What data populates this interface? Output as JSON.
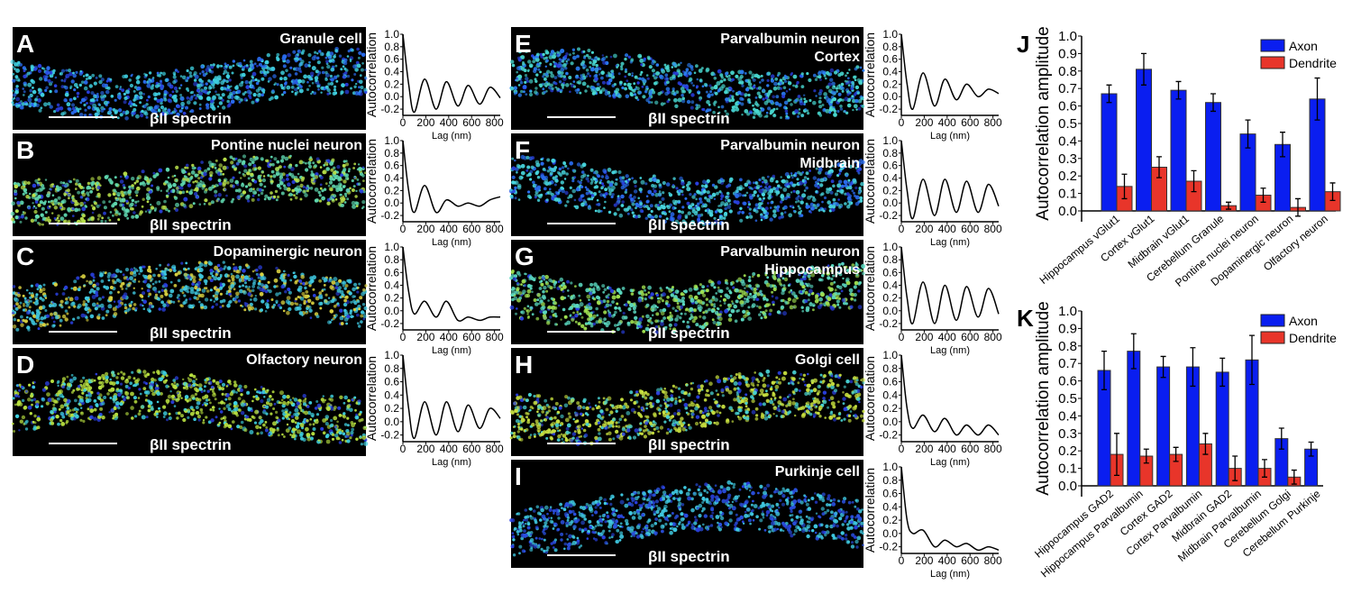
{
  "autocorr_axes": {
    "ylabel": "Autocorrelation",
    "xlabel": "Lag (nm)",
    "yticks": [
      "-0.2",
      "0.0",
      "0.2",
      "0.4",
      "0.6",
      "0.8",
      "1.0"
    ],
    "xticks": [
      "0",
      "200",
      "400",
      "600",
      "800"
    ]
  },
  "stain_label": "βII spectrin",
  "panels": [
    {
      "letter": "A",
      "title": [
        "Granule cell"
      ],
      "colors": [
        "#3fd0e0",
        "#2a6cf0"
      ]
    },
    {
      "letter": "B",
      "title": [
        "Pontine nuclei neuron"
      ],
      "colors": [
        "#5fd8b0",
        "#b8e04a"
      ]
    },
    {
      "letter": "C",
      "title": [
        "Dopaminergic neuron"
      ],
      "colors": [
        "#3fc8e0",
        "#d8d040"
      ]
    },
    {
      "letter": "D",
      "title": [
        "Olfactory neuron"
      ],
      "colors": [
        "#b8e040",
        "#3fd0e0"
      ]
    },
    {
      "letter": "E",
      "title": [
        "Parvalbumin neuron",
        "Cortex"
      ],
      "colors": [
        "#48d8d0",
        "#2a7cf0"
      ]
    },
    {
      "letter": "F",
      "title": [
        "Parvalbumin neuron",
        "Midbrain"
      ],
      "colors": [
        "#48d8e0",
        "#2a6cf0"
      ]
    },
    {
      "letter": "G",
      "title": [
        "Parvalbumin neuron",
        "Hippocampus"
      ],
      "colors": [
        "#5ad8c0",
        "#a0e050"
      ]
    },
    {
      "letter": "H",
      "title": [
        "Golgi cell"
      ],
      "colors": [
        "#c8e040",
        "#48d0d0"
      ]
    },
    {
      "letter": "I",
      "title": [
        "Purkinje cell"
      ],
      "colors": [
        "#3fc8e0",
        "#2a50e0"
      ]
    }
  ],
  "chart_data": [
    {
      "type": "line",
      "panel": "A",
      "xlabel": "Lag (nm)",
      "ylabel": "Autocorrelation",
      "xlim": [
        0,
        850
      ],
      "ylim": [
        -0.3,
        1.0
      ],
      "x": [
        0,
        50,
        100,
        190,
        290,
        380,
        480,
        570,
        670,
        760,
        850
      ],
      "y": [
        1,
        0.2,
        -0.25,
        0.28,
        -0.2,
        0.24,
        -0.15,
        0.18,
        -0.12,
        0.15,
        -0.02
      ]
    },
    {
      "type": "line",
      "panel": "B",
      "xlabel": "Lag (nm)",
      "ylabel": "Autocorrelation",
      "xlim": [
        0,
        850
      ],
      "ylim": [
        -0.3,
        1.0
      ],
      "x": [
        0,
        50,
        100,
        190,
        290,
        380,
        480,
        570,
        670,
        760,
        850
      ],
      "y": [
        1,
        0.2,
        -0.15,
        0.28,
        -0.15,
        0.05,
        -0.05,
        0.0,
        -0.05,
        0.05,
        0.1
      ]
    },
    {
      "type": "line",
      "panel": "C",
      "xlabel": "Lag (nm)",
      "ylabel": "Autocorrelation",
      "xlim": [
        0,
        850
      ],
      "ylim": [
        -0.3,
        1.0
      ],
      "x": [
        0,
        50,
        100,
        190,
        290,
        380,
        480,
        570,
        670,
        760,
        850
      ],
      "y": [
        1,
        0.3,
        -0.05,
        0.15,
        -0.1,
        0.15,
        -0.15,
        -0.1,
        -0.15,
        -0.1,
        -0.1
      ]
    },
    {
      "type": "line",
      "panel": "D",
      "xlabel": "Lag (nm)",
      "ylabel": "Autocorrelation",
      "xlim": [
        0,
        850
      ],
      "ylim": [
        -0.3,
        1.0
      ],
      "x": [
        0,
        50,
        100,
        190,
        290,
        380,
        480,
        570,
        670,
        760,
        850
      ],
      "y": [
        1,
        0.2,
        -0.25,
        0.3,
        -0.2,
        0.3,
        -0.15,
        0.25,
        -0.1,
        0.2,
        0.05
      ]
    },
    {
      "type": "line",
      "panel": "E",
      "xlabel": "Lag (nm)",
      "ylabel": "Autocorrelation",
      "xlim": [
        0,
        850
      ],
      "ylim": [
        -0.3,
        1.0
      ],
      "x": [
        0,
        50,
        100,
        190,
        290,
        380,
        480,
        570,
        670,
        760,
        850
      ],
      "y": [
        1,
        0.2,
        -0.2,
        0.38,
        -0.15,
        0.28,
        -0.05,
        0.2,
        0.0,
        0.12,
        0.05
      ]
    },
    {
      "type": "line",
      "panel": "F",
      "xlabel": "Lag (nm)",
      "ylabel": "Autocorrelation",
      "xlim": [
        0,
        850
      ],
      "ylim": [
        -0.3,
        1.0
      ],
      "x": [
        0,
        50,
        100,
        190,
        290,
        380,
        480,
        570,
        670,
        760,
        850
      ],
      "y": [
        1,
        0.2,
        -0.25,
        0.38,
        -0.2,
        0.38,
        -0.15,
        0.35,
        -0.15,
        0.3,
        -0.05
      ]
    },
    {
      "type": "line",
      "panel": "G",
      "xlabel": "Lag (nm)",
      "ylabel": "Autocorrelation",
      "xlim": [
        0,
        850
      ],
      "ylim": [
        -0.3,
        1.0
      ],
      "x": [
        0,
        50,
        100,
        190,
        290,
        380,
        480,
        570,
        670,
        760,
        850
      ],
      "y": [
        1,
        0.2,
        -0.2,
        0.45,
        -0.2,
        0.4,
        -0.15,
        0.38,
        -0.1,
        0.35,
        -0.05
      ]
    },
    {
      "type": "line",
      "panel": "H",
      "xlabel": "Lag (nm)",
      "ylabel": "Autocorrelation",
      "xlim": [
        0,
        850
      ],
      "ylim": [
        -0.3,
        1.0
      ],
      "x": [
        0,
        50,
        100,
        190,
        290,
        380,
        480,
        570,
        670,
        760,
        850
      ],
      "y": [
        1,
        0.2,
        -0.1,
        0.1,
        -0.15,
        0.05,
        -0.2,
        -0.05,
        -0.2,
        -0.05,
        -0.2
      ]
    },
    {
      "type": "line",
      "panel": "I",
      "xlabel": "Lag (nm)",
      "ylabel": "Autocorrelation",
      "xlim": [
        0,
        850
      ],
      "ylim": [
        -0.3,
        1.0
      ],
      "x": [
        0,
        50,
        100,
        190,
        290,
        380,
        480,
        570,
        670,
        760,
        850
      ],
      "y": [
        1,
        0.2,
        0.0,
        0.05,
        -0.2,
        -0.1,
        -0.2,
        -0.15,
        -0.25,
        -0.2,
        -0.25
      ]
    },
    {
      "type": "bar",
      "panel": "J",
      "ylabel": "Autocorrelation amplitude",
      "ylim": [
        0,
        1.0
      ],
      "yticks": [
        "0.0",
        "0.1",
        "0.2",
        "0.3",
        "0.4",
        "0.5",
        "0.6",
        "0.7",
        "0.8",
        "0.9",
        "1.0"
      ],
      "legend": "top-right",
      "categories": [
        "Hippocampus vGlut1",
        "Cortex vGlut1",
        "Midbrain vGlut1",
        "Cerebellum Granule",
        "Pontine nuclei neuron",
        "Dopaminergic neuron",
        "Olfactory neuron"
      ],
      "series": [
        {
          "name": "Axon",
          "color": "#0a1ef0",
          "values": [
            0.67,
            0.81,
            0.69,
            0.62,
            0.44,
            0.38,
            0.64
          ],
          "errors": [
            0.05,
            0.09,
            0.05,
            0.05,
            0.08,
            0.07,
            0.12
          ]
        },
        {
          "name": "Dendrite",
          "color": "#e8352a",
          "values": [
            0.14,
            0.25,
            0.17,
            0.03,
            0.09,
            0.02,
            0.11
          ],
          "errors": [
            0.07,
            0.06,
            0.06,
            0.02,
            0.04,
            0.05,
            0.05
          ]
        }
      ]
    },
    {
      "type": "bar",
      "panel": "K",
      "ylabel": "Autocorrelation amplitude",
      "ylim": [
        0,
        1.0
      ],
      "yticks": [
        "0.0",
        "0.1",
        "0.2",
        "0.3",
        "0.4",
        "0.5",
        "0.6",
        "0.7",
        "0.8",
        "0.9",
        "1.0"
      ],
      "legend": "top-right",
      "categories": [
        "Hippocampus GAD2",
        "Hippocampus Parvalbumin",
        "Cortex GAD2",
        "Cortex Parvalbumin",
        "Midbrain GAD2",
        "Midbrain Parvalbumin",
        "Cerebellum Golgi",
        "Cerebellum Purkinje"
      ],
      "series": [
        {
          "name": "Axon",
          "color": "#0a1ef0",
          "values": [
            0.66,
            0.77,
            0.68,
            0.68,
            0.65,
            0.72,
            0.27,
            0.21
          ],
          "errors": [
            0.11,
            0.1,
            0.06,
            0.11,
            0.08,
            0.14,
            0.06,
            0.04
          ]
        },
        {
          "name": "Dendrite",
          "color": "#e8352a",
          "values": [
            0.18,
            0.17,
            0.18,
            0.24,
            0.1,
            0.1,
            0.05,
            null
          ],
          "errors": [
            0.12,
            0.04,
            0.04,
            0.06,
            0.07,
            0.05,
            0.04,
            null
          ]
        }
      ]
    }
  ]
}
